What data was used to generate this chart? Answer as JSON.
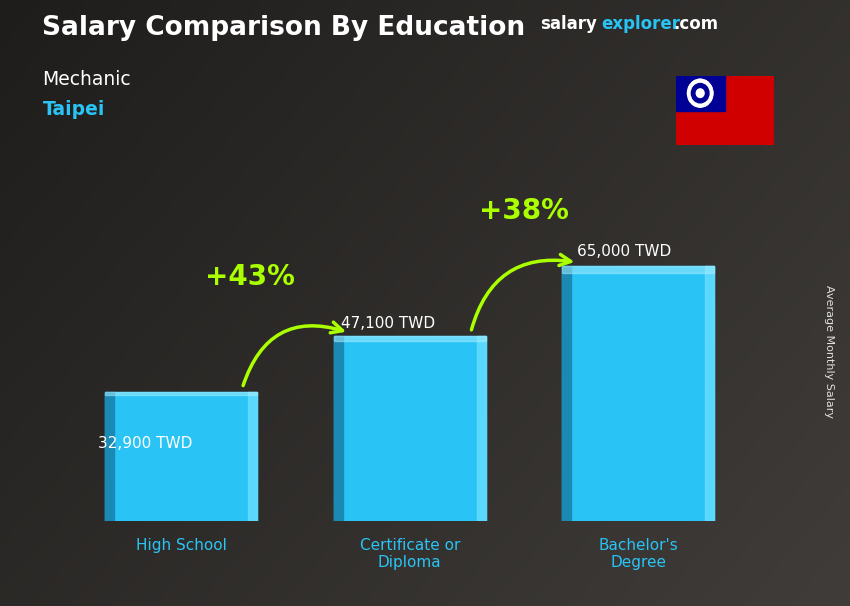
{
  "title": "Salary Comparison By Education",
  "subtitle1": "Mechanic",
  "subtitle2": "Taipei",
  "categories": [
    "High School",
    "Certificate or\nDiploma",
    "Bachelor's\nDegree"
  ],
  "values": [
    32900,
    47100,
    65000
  ],
  "labels": [
    "32,900 TWD",
    "47,100 TWD",
    "65,000 TWD"
  ],
  "bar_color": "#29c4f5",
  "bar_color_dark": "#1a8ab5",
  "bar_color_light": "#6ee0ff",
  "pct_labels": [
    "+43%",
    "+38%"
  ],
  "pct_color": "#aaff00",
  "bg_color": "#2a2a2a",
  "title_color": "#ffffff",
  "subtitle1_color": "#ffffff",
  "subtitle2_color": "#29c4f5",
  "label_color": "#ffffff",
  "xtick_color": "#29c4f5",
  "ylabel": "Average Monthly Salary",
  "brand_salary": "salary",
  "brand_explorer": "explorer",
  "brand_com": ".com",
  "brand_salary_color": "#ffffff",
  "brand_explorer_color": "#29c4f5",
  "ylim_max": 85000,
  "bar_positions": [
    1.0,
    2.5,
    4.0
  ],
  "bar_width": 1.0,
  "xlim": [
    0.2,
    5.0
  ]
}
